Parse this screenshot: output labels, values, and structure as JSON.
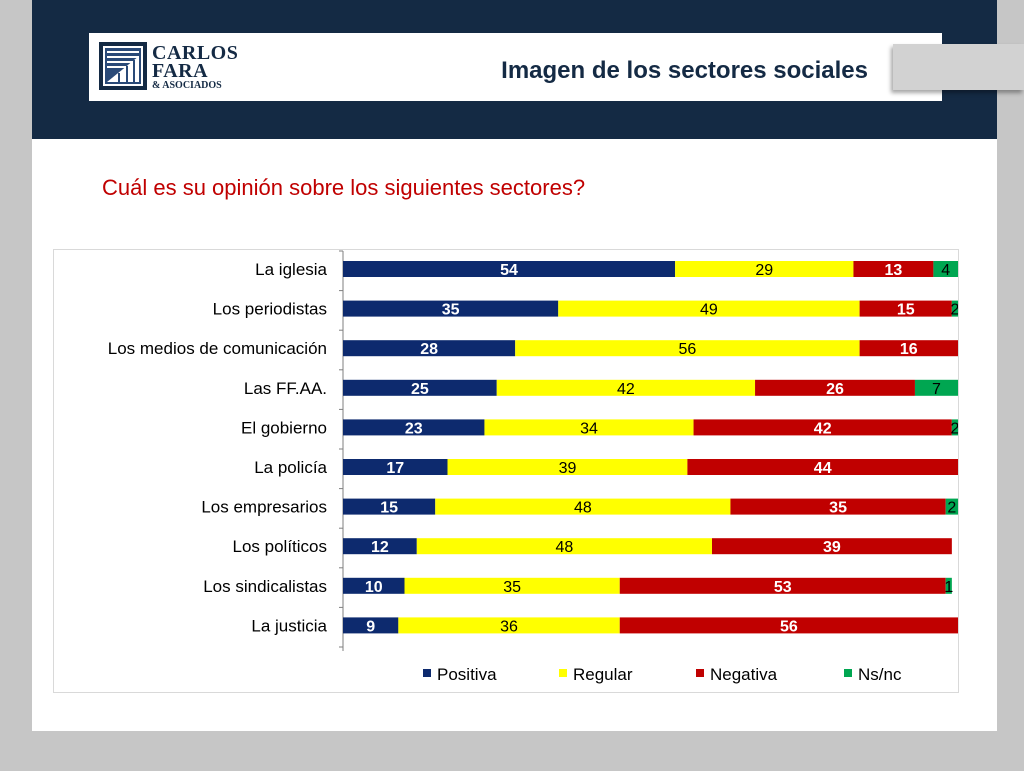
{
  "header": {
    "title": "Imagen de los sectores sociales",
    "logo": {
      "line1": "CARLOS",
      "line2": "FARA",
      "line3": "& ASOCIADOS"
    }
  },
  "question": "Cuál es su opinión sobre los siguientes sectores?",
  "colors": {
    "header_bg": "#142a44",
    "question_text": "#c00000",
    "positiva": "#0d2a6e",
    "regular": "#ffff00",
    "negativa": "#c00000",
    "nsnc": "#00a651"
  },
  "chart_data": {
    "type": "bar",
    "orientation": "horizontal",
    "stacked": true,
    "categories": [
      "La iglesia",
      "Los periodistas",
      "Los medios de comunicación",
      "Las FF.AA.",
      "El gobierno",
      "La policía",
      "Los empresarios",
      "Los políticos",
      "Los sindicalistas",
      "La justicia"
    ],
    "series": [
      {
        "name": "Positiva",
        "color": "#0d2a6e",
        "label_color": "#ffffff",
        "values": [
          54,
          35,
          28,
          25,
          23,
          17,
          15,
          12,
          10,
          9
        ]
      },
      {
        "name": "Regular",
        "color": "#ffff00",
        "label_color": "#000000",
        "values": [
          29,
          49,
          56,
          42,
          34,
          39,
          48,
          48,
          35,
          36
        ]
      },
      {
        "name": "Negativa",
        "color": "#c00000",
        "label_color": "#ffffff",
        "values": [
          13,
          15,
          16,
          26,
          42,
          44,
          35,
          39,
          53,
          56
        ]
      },
      {
        "name": "Ns/nc",
        "color": "#00a651",
        "label_color": "#000000",
        "values": [
          4,
          2,
          null,
          7,
          2,
          null,
          2,
          null,
          1,
          null
        ]
      }
    ],
    "xlim": [
      0,
      100
    ],
    "grid": false,
    "legend": "bottom"
  }
}
